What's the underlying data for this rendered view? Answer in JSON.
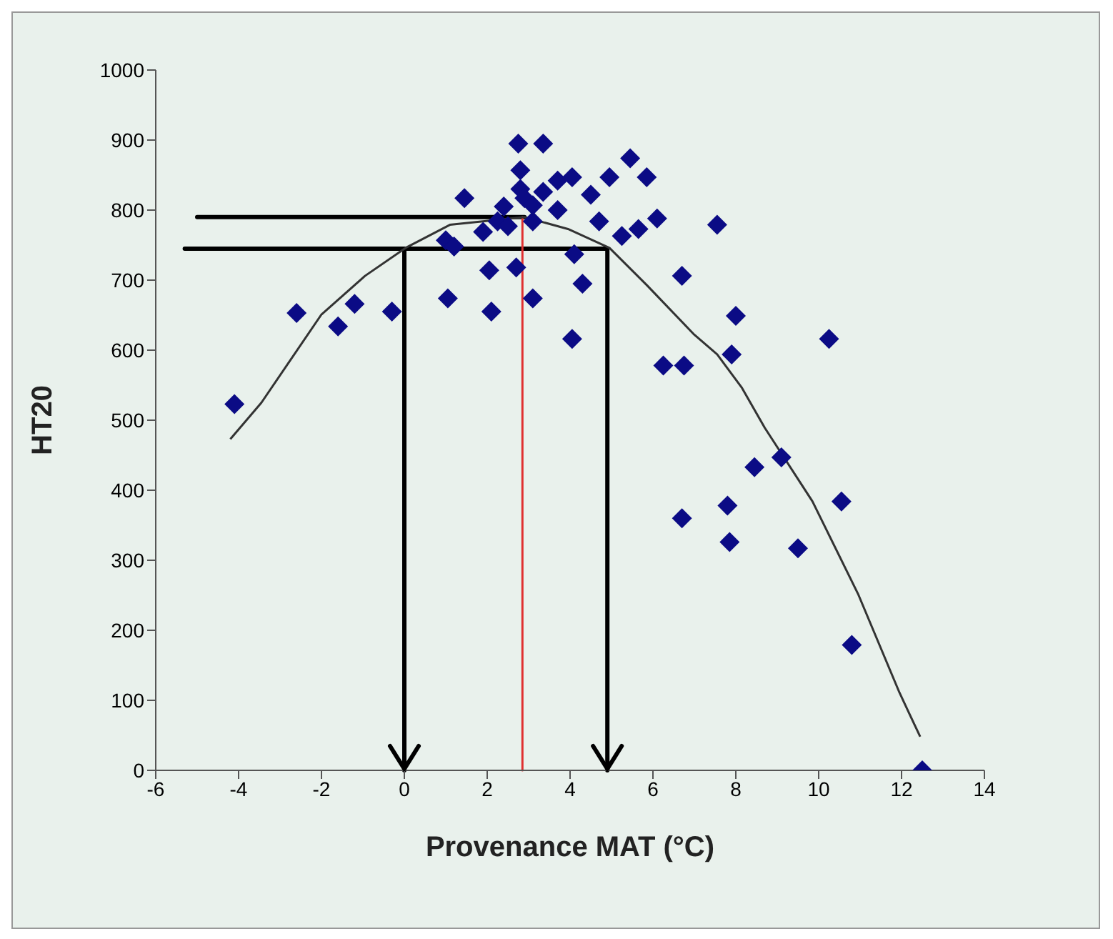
{
  "chart_data": {
    "type": "scatter",
    "xlabel": "Provenance MAT (°C)",
    "ylabel": "HT20",
    "xlim": [
      -6,
      14
    ],
    "ylim": [
      0,
      1000
    ],
    "xticks": [
      -6,
      -4,
      -2,
      0,
      2,
      4,
      6,
      8,
      10,
      12,
      14
    ],
    "yticks": [
      0,
      100,
      200,
      300,
      400,
      500,
      600,
      700,
      800,
      900,
      1000
    ],
    "grid": false,
    "legend": false,
    "ref_lines": [
      {
        "axis": "y",
        "value": 790,
        "color": "#000000"
      },
      {
        "axis": "y",
        "value": 745,
        "color": "#000000"
      },
      {
        "axis": "x",
        "value": 2.85,
        "color": "#e03030"
      },
      {
        "axis": "x",
        "value": 0,
        "color": "#000000"
      },
      {
        "axis": "x",
        "value": 4.9,
        "color": "#000000"
      }
    ],
    "series": [
      {
        "marker": "diamond",
        "color": "#0b0b85",
        "x": [
          -4.1,
          -2.6,
          -1.6,
          -1.2,
          -0.3,
          1.05,
          1.0,
          1.2,
          1.45,
          2.1,
          2.05,
          2.7,
          1.9,
          2.25,
          2.4,
          2.5,
          2.75,
          2.8,
          2.8,
          3.1,
          3.1,
          3.35,
          3.35,
          3.7,
          4.05,
          4.5,
          4.95,
          5.45,
          5.85,
          4.7,
          5.25,
          5.65,
          6.1,
          7.55,
          3.7,
          2.9,
          3.1,
          4.1,
          4.3,
          4.05,
          6.25,
          6.75,
          6.7,
          8.0,
          7.9,
          10.25,
          8.45,
          9.1,
          10.55,
          6.7,
          7.8,
          7.85,
          9.5,
          10.8,
          12.5
        ],
        "values": [
          523,
          653,
          634,
          666,
          655,
          674,
          757,
          748,
          817,
          655,
          714,
          718,
          769,
          784,
          805,
          777,
          895,
          857,
          830,
          674,
          784,
          895,
          826,
          842,
          847,
          822,
          847,
          874,
          847,
          784,
          763,
          773,
          788,
          779,
          800,
          817,
          807,
          737,
          695,
          616,
          578,
          578,
          706,
          649,
          594,
          616,
          433,
          447,
          384,
          360,
          378,
          326,
          317,
          179,
          0
        ]
      },
      {
        "type": "line",
        "marker": "none",
        "color": "#333333",
        "x": [
          -4.2,
          -3.45,
          -2.0,
          -0.95,
          0.03,
          1.1,
          2.9,
          3.95,
          4.95,
          5.85,
          7.0,
          7.55,
          8.15,
          8.7,
          9.85,
          10.95,
          11.95,
          12.45
        ],
        "values": [
          473,
          525,
          651,
          706,
          746,
          779,
          790,
          773,
          746,
          693,
          622,
          594,
          546,
          489,
          384,
          252,
          111,
          48
        ]
      }
    ]
  }
}
